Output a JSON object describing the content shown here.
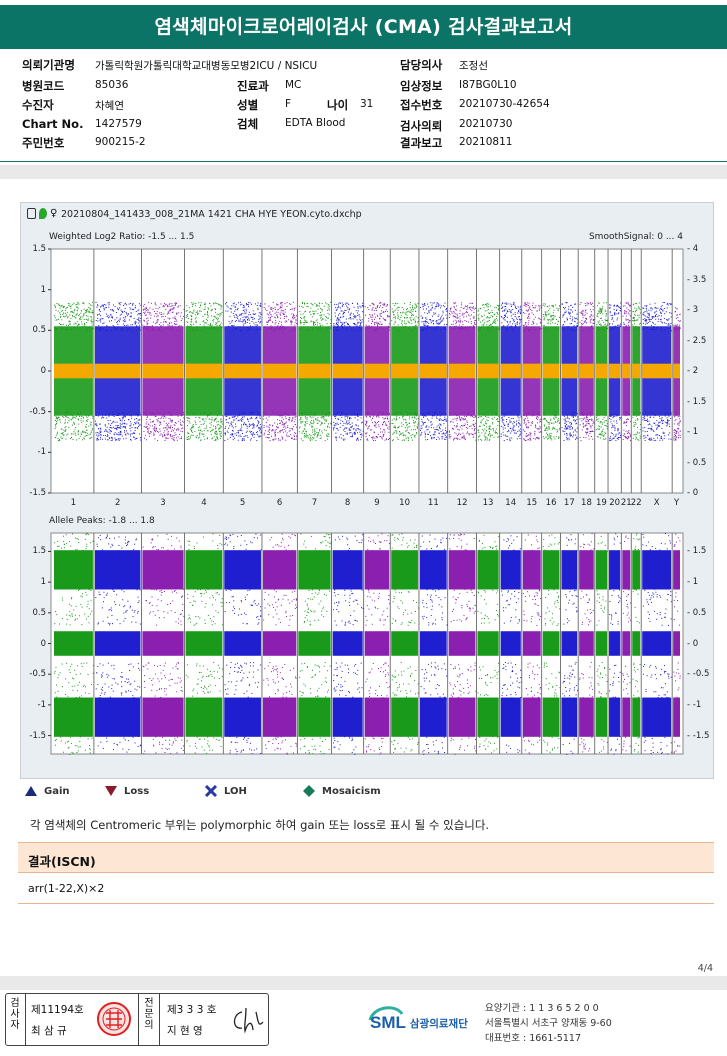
{
  "report_title": "염색체마이크로어레이검사 (CMA) 검사결과보고서",
  "info": {
    "institution_label": "의뢰기관명",
    "institution_value": "가톨릭학원가톨릭대학교대병동모병2ICU / NSICU",
    "attending_label": "담당의사",
    "attending_value": "조정선",
    "hospital_code_label": "병원코드",
    "hospital_code_value": "85036",
    "department_label": "진료과",
    "department_value": "MC",
    "clinical_info_label": "임상정보",
    "clinical_info_value": "I87BG0L10",
    "patient_label": "수진자",
    "patient_value": "차혜연",
    "sex_label": "성별",
    "sex_value": "F",
    "age_label": "나이",
    "age_value": "31",
    "receipt_label": "접수번호",
    "receipt_value": "20210730-42654",
    "chart_label": "Chart No.",
    "chart_value": "1427579",
    "specimen_label": "검체",
    "specimen_value": "EDTA Blood",
    "request_label": "검사의뢰",
    "request_value": "20210730",
    "resident_label": "주민번호",
    "resident_value": "900215-2",
    "report_label": "결과보고",
    "report_value": "20210811"
  },
  "figure": {
    "filename": "20210804_141433_008_21MA 1421 CHA HYE YEON.cyto.dxchp",
    "top_left_label": "Weighted Log2 Ratio: -1.5 ... 1.5",
    "top_right_label": "SmoothSignal: 0 ... 4",
    "bottom_left_label": "Allele Peaks: -1.8 ... 1.8",
    "top_left_ticks": [
      "1.5",
      "1",
      "0.5",
      "0",
      "-0.5",
      "-1",
      "-1.5"
    ],
    "top_right_ticks": [
      "4",
      "3.5",
      "3",
      "2.5",
      "2",
      "1.5",
      "1",
      "0.5",
      "0"
    ],
    "bottom_left_ticks": [
      "1.5",
      "1",
      "0.5",
      "0",
      "-0.5",
      "-1",
      "-1.5"
    ],
    "bottom_right_ticks": [
      "1.5",
      "1",
      "0.5",
      "0",
      "-0.5",
      "-1",
      "-1.5"
    ],
    "chromosomes": [
      "1",
      "2",
      "3",
      "4",
      "5",
      "6",
      "7",
      "8",
      "9",
      "10",
      "11",
      "12",
      "13",
      "14",
      "15",
      "16",
      "17",
      "18",
      "19",
      "20",
      "21",
      "22",
      "X",
      "Y"
    ],
    "colors": {
      "green": "#1a9a1a",
      "blue": "#1f1fcf",
      "purple": "#8a1fb0",
      "orange": "#f5a800",
      "background": "#e9eef3"
    }
  },
  "legend": {
    "gain": "Gain",
    "loss": "Loss",
    "loh": "LOH",
    "mosaicism": "Mosaicism",
    "gain_color": "#1b2a7a",
    "loss_color": "#8b1a2a",
    "loh_color": "#2a3aa0",
    "mosaicism_color": "#1a7a5a"
  },
  "note": "각 염색체의 Centromeric 부위는 polymorphic 하여 gain 또는 loss로 표시 될 수 있습니다.",
  "result": {
    "header": "결과(ISCN)",
    "value": "arr(1-22,X)×2"
  },
  "page": "4/4",
  "signature": {
    "inspector_label": "검사자",
    "inspector_no": "제11194호",
    "inspector_name": "최 삼 규",
    "reviewer_label": "전문의",
    "reviewer_no": "제3 3 3 호",
    "reviewer_name": "지 현 영"
  },
  "org": {
    "logo": "SML",
    "name": "삼광의료재단",
    "care_code": "요양기관 : 1 1 3 6 5 2 0 0",
    "address": "서울특별시 서초구 양재동 9-60",
    "phone": "대표번호 : 1661-5117"
  }
}
